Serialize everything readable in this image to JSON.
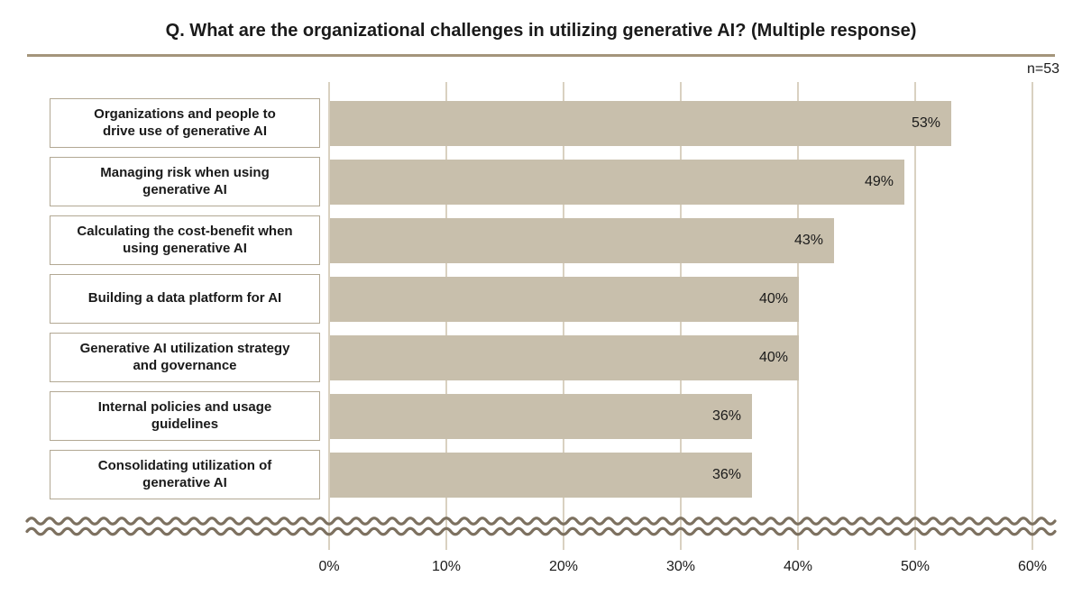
{
  "title": "Q. What are the organizational challenges in utilizing generative AI? (Multiple response)",
  "sample_label": "n=53",
  "colors": {
    "bar": "#c8bfac",
    "gridline": "#d9d1c1",
    "title_rule": "#a4957b",
    "wave": "#7d7160",
    "label_box_border": "#b2a893",
    "text": "#1a1a1a"
  },
  "chart_data": {
    "type": "bar",
    "orientation": "horizontal",
    "title": "Q. What are the organizational challenges in utilizing generative AI? (Multiple response)",
    "sample_size": "n=53",
    "categories": [
      "Organizations and people to drive use of generative AI",
      "Managing risk when using generative AI",
      "Calculating the cost-benefit when using generative AI",
      "Building a data platform for AI",
      "Generative AI utilization strategy and governance",
      "Internal policies and usage guidelines",
      "Consolidating utilization of generative AI"
    ],
    "category_lines": [
      [
        "Organizations and people to",
        "drive use of generative AI"
      ],
      [
        "Managing risk when using",
        "generative AI"
      ],
      [
        "Calculating the cost-benefit when",
        "using generative AI"
      ],
      [
        "Building a data platform for AI"
      ],
      [
        "Generative AI utilization strategy",
        "and governance"
      ],
      [
        "Internal policies and usage",
        "guidelines"
      ],
      [
        "Consolidating utilization of",
        "generative AI"
      ]
    ],
    "values": [
      53,
      49,
      43,
      40,
      40,
      36,
      36
    ],
    "value_labels": [
      "53%",
      "49%",
      "43%",
      "40%",
      "40%",
      "36%",
      "36%"
    ],
    "x_ticks": [
      "0%",
      "10%",
      "20%",
      "30%",
      "40%",
      "50%",
      "60%"
    ],
    "x_tick_values": [
      0,
      10,
      20,
      30,
      40,
      50,
      60
    ],
    "xlim": [
      0,
      60
    ],
    "grid": true,
    "legend": false,
    "axis_break": "wavy line indicating additional truncated categories"
  }
}
